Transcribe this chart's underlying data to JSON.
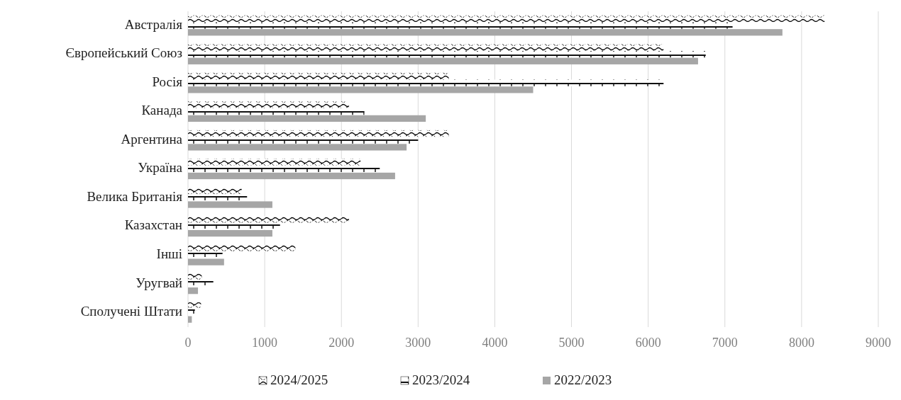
{
  "chart_data": {
    "type": "bar",
    "orientation": "horizontal",
    "categories": [
      "Австралія",
      "Європейський Союз",
      "Росія",
      "Канада",
      "Аргентина",
      "Україна",
      "Велика Британія",
      "Казахстан",
      "Інші",
      "Уругвай",
      "Сполучені Штати"
    ],
    "series": [
      {
        "name": "2024/2025",
        "color": "#000000",
        "values": [
          8300,
          6200,
          3400,
          2100,
          3400,
          2250,
          700,
          2100,
          1400,
          180,
          170
        ]
      },
      {
        "name": "2023/2024",
        "color": "#111111",
        "values": [
          7100,
          6750,
          6200,
          2300,
          3000,
          2500,
          770,
          1200,
          450,
          330,
          90
        ]
      },
      {
        "name": "2022/2023",
        "color": "#a6a6a6",
        "values": [
          7750,
          6650,
          4500,
          3100,
          2850,
          2700,
          1100,
          1100,
          470,
          130,
          50
        ]
      }
    ],
    "xlim": [
      0,
      9000
    ],
    "xticks": [
      0,
      1000,
      2000,
      3000,
      4000,
      5000,
      6000,
      7000,
      8000,
      9000
    ],
    "grid": "x",
    "legend": "bottom"
  }
}
